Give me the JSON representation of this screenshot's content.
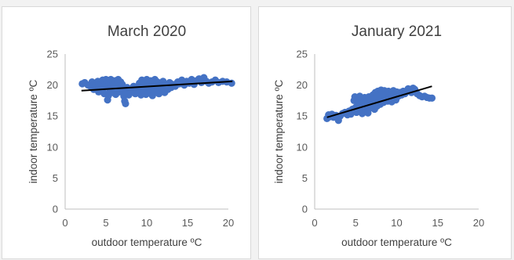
{
  "chart_data": [
    {
      "type": "scatter",
      "title": "March 2020",
      "xlabel": "outdoor temperature ºC",
      "ylabel": "indoor temperature ºC",
      "xlim": [
        0,
        20
      ],
      "ylim": [
        0,
        25
      ],
      "xticks": [
        0,
        5,
        10,
        15,
        20
      ],
      "yticks": [
        0,
        5,
        10,
        15,
        20,
        25
      ],
      "grid": false,
      "marker_color": "#4472c4",
      "trendline_color": "#000000",
      "trendline": {
        "x": [
          2.0,
          20.5
        ],
        "y": [
          19.1,
          20.6
        ]
      },
      "points": [
        [
          2.1,
          20.2
        ],
        [
          2.4,
          20.4
        ],
        [
          2.8,
          20.0
        ],
        [
          3.1,
          19.8
        ],
        [
          3.3,
          20.5
        ],
        [
          3.5,
          19.3
        ],
        [
          3.7,
          20.1
        ],
        [
          3.9,
          19.6
        ],
        [
          4.0,
          20.6
        ],
        [
          4.1,
          18.9
        ],
        [
          4.3,
          19.9
        ],
        [
          4.4,
          20.3
        ],
        [
          4.5,
          19.2
        ],
        [
          4.6,
          20.8
        ],
        [
          4.7,
          19.5
        ],
        [
          4.8,
          18.6
        ],
        [
          4.9,
          20.0
        ],
        [
          5.0,
          20.9
        ],
        [
          5.1,
          19.7
        ],
        [
          5.2,
          17.6
        ],
        [
          5.3,
          18.3
        ],
        [
          5.4,
          20.4
        ],
        [
          5.5,
          19.0
        ],
        [
          5.6,
          20.9
        ],
        [
          5.7,
          18.8
        ],
        [
          5.8,
          19.6
        ],
        [
          5.9,
          20.2
        ],
        [
          6.0,
          19.4
        ],
        [
          6.1,
          20.7
        ],
        [
          6.2,
          18.5
        ],
        [
          6.3,
          20.0
        ],
        [
          6.4,
          19.2
        ],
        [
          6.5,
          20.9
        ],
        [
          6.6,
          19.8
        ],
        [
          6.7,
          18.9
        ],
        [
          6.8,
          20.5
        ],
        [
          6.9,
          19.4
        ],
        [
          7.0,
          20.1
        ],
        [
          7.1,
          19.0
        ],
        [
          7.2,
          18.2
        ],
        [
          7.3,
          17.4
        ],
        [
          7.4,
          17.0
        ],
        [
          7.5,
          18.7
        ],
        [
          7.6,
          19.6
        ],
        [
          7.8,
          18.4
        ],
        [
          8.0,
          19.3
        ],
        [
          8.2,
          18.9
        ],
        [
          8.4,
          19.8
        ],
        [
          8.6,
          18.6
        ],
        [
          8.8,
          19.5
        ],
        [
          9.0,
          18.8
        ],
        [
          9.1,
          20.3
        ],
        [
          9.2,
          19.2
        ],
        [
          9.3,
          18.4
        ],
        [
          9.4,
          20.8
        ],
        [
          9.5,
          19.6
        ],
        [
          9.6,
          18.9
        ],
        [
          9.7,
          20.5
        ],
        [
          9.8,
          19.3
        ],
        [
          9.9,
          18.5
        ],
        [
          10.0,
          20.9
        ],
        [
          10.1,
          19.7
        ],
        [
          10.2,
          20.2
        ],
        [
          10.3,
          18.7
        ],
        [
          10.4,
          19.5
        ],
        [
          10.5,
          20.7
        ],
        [
          10.6,
          19.0
        ],
        [
          10.7,
          18.3
        ],
        [
          10.8,
          20.3
        ],
        [
          10.9,
          19.6
        ],
        [
          11.0,
          20.9
        ],
        [
          11.1,
          18.9
        ],
        [
          11.2,
          19.8
        ],
        [
          11.3,
          20.5
        ],
        [
          11.4,
          19.2
        ],
        [
          11.5,
          18.6
        ],
        [
          11.6,
          20.0
        ],
        [
          11.8,
          19.5
        ],
        [
          12.0,
          20.6
        ],
        [
          12.2,
          18.8
        ],
        [
          12.4,
          19.9
        ],
        [
          12.6,
          19.3
        ],
        [
          12.8,
          20.4
        ],
        [
          13.0,
          19.6
        ],
        [
          13.2,
          20.1
        ],
        [
          13.5,
          19.8
        ],
        [
          13.8,
          20.5
        ],
        [
          14.0,
          20.2
        ],
        [
          14.3,
          20.8
        ],
        [
          14.6,
          20.0
        ],
        [
          14.9,
          20.6
        ],
        [
          15.2,
          20.3
        ],
        [
          15.5,
          20.9
        ],
        [
          15.8,
          20.1
        ],
        [
          16.1,
          20.7
        ],
        [
          16.4,
          21.0
        ],
        [
          16.7,
          20.4
        ],
        [
          17.0,
          21.2
        ],
        [
          17.3,
          20.6
        ],
        [
          17.6,
          20.3
        ],
        [
          18.0,
          20.5
        ],
        [
          18.4,
          20.8
        ],
        [
          18.8,
          20.4
        ],
        [
          19.3,
          20.6
        ],
        [
          19.8,
          20.5
        ],
        [
          20.4,
          20.3
        ]
      ]
    },
    {
      "type": "scatter",
      "title": "January 2021",
      "xlabel": "outdoor temperature ºC",
      "ylabel": "indoor temperature ºC",
      "xlim": [
        0,
        20
      ],
      "ylim": [
        0,
        25
      ],
      "xticks": [
        0,
        5,
        10,
        15,
        20
      ],
      "yticks": [
        0,
        5,
        10,
        15,
        20,
        25
      ],
      "grid": false,
      "marker_color": "#4472c4",
      "trendline_color": "#000000",
      "trendline": {
        "x": [
          1.5,
          14.3
        ],
        "y": [
          14.8,
          19.8
        ]
      },
      "points": [
        [
          1.5,
          14.6
        ],
        [
          1.7,
          15.2
        ],
        [
          1.9,
          14.9
        ],
        [
          2.1,
          15.3
        ],
        [
          2.3,
          14.8
        ],
        [
          2.6,
          15.1
        ],
        [
          2.9,
          14.3
        ],
        [
          3.1,
          15.0
        ],
        [
          3.4,
          15.4
        ],
        [
          3.7,
          15.6
        ],
        [
          4.0,
          15.2
        ],
        [
          4.2,
          15.8
        ],
        [
          4.4,
          15.3
        ],
        [
          4.6,
          16.1
        ],
        [
          4.8,
          17.5
        ],
        [
          4.9,
          18.1
        ],
        [
          5.0,
          16.4
        ],
        [
          5.1,
          15.6
        ],
        [
          5.2,
          17.9
        ],
        [
          5.3,
          16.8
        ],
        [
          5.4,
          15.9
        ],
        [
          5.5,
          18.2
        ],
        [
          5.6,
          17.2
        ],
        [
          5.7,
          16.0
        ],
        [
          5.8,
          15.4
        ],
        [
          5.9,
          17.7
        ],
        [
          6.0,
          16.5
        ],
        [
          6.1,
          18.0
        ],
        [
          6.2,
          15.8
        ],
        [
          6.3,
          17.3
        ],
        [
          6.4,
          16.7
        ],
        [
          6.5,
          15.5
        ],
        [
          6.6,
          18.1
        ],
        [
          6.7,
          17.0
        ],
        [
          6.8,
          16.3
        ],
        [
          6.9,
          17.6
        ],
        [
          7.0,
          16.9
        ],
        [
          7.1,
          18.4
        ],
        [
          7.2,
          17.4
        ],
        [
          7.3,
          16.1
        ],
        [
          7.4,
          18.8
        ],
        [
          7.5,
          17.8
        ],
        [
          7.6,
          16.6
        ],
        [
          7.7,
          19.0
        ],
        [
          7.8,
          17.5
        ],
        [
          7.9,
          18.2
        ],
        [
          8.0,
          16.9
        ],
        [
          8.1,
          19.2
        ],
        [
          8.2,
          17.9
        ],
        [
          8.3,
          18.6
        ],
        [
          8.4,
          17.2
        ],
        [
          8.5,
          19.1
        ],
        [
          8.6,
          18.3
        ],
        [
          8.7,
          17.6
        ],
        [
          8.8,
          18.9
        ],
        [
          8.9,
          17.4
        ],
        [
          9.0,
          19.0
        ],
        [
          9.1,
          18.1
        ],
        [
          9.2,
          17.7
        ],
        [
          9.3,
          18.7
        ],
        [
          9.4,
          17.3
        ],
        [
          9.5,
          18.5
        ],
        [
          9.6,
          19.1
        ],
        [
          9.7,
          17.8
        ],
        [
          9.8,
          18.4
        ],
        [
          9.9,
          17.6
        ],
        [
          10.0,
          18.9
        ],
        [
          10.2,
          18.2
        ],
        [
          10.4,
          18.8
        ],
        [
          10.6,
          18.4
        ],
        [
          10.8,
          19.0
        ],
        [
          11.0,
          18.6
        ],
        [
          11.2,
          18.9
        ],
        [
          11.4,
          19.4
        ],
        [
          11.6,
          19.2
        ],
        [
          11.8,
          18.8
        ],
        [
          12.0,
          19.5
        ],
        [
          12.2,
          19.3
        ],
        [
          12.5,
          18.6
        ],
        [
          12.8,
          18.3
        ],
        [
          13.1,
          18.1
        ],
        [
          13.4,
          18.2
        ],
        [
          13.7,
          18.0
        ],
        [
          14.0,
          17.9
        ],
        [
          14.3,
          17.9
        ]
      ]
    }
  ]
}
